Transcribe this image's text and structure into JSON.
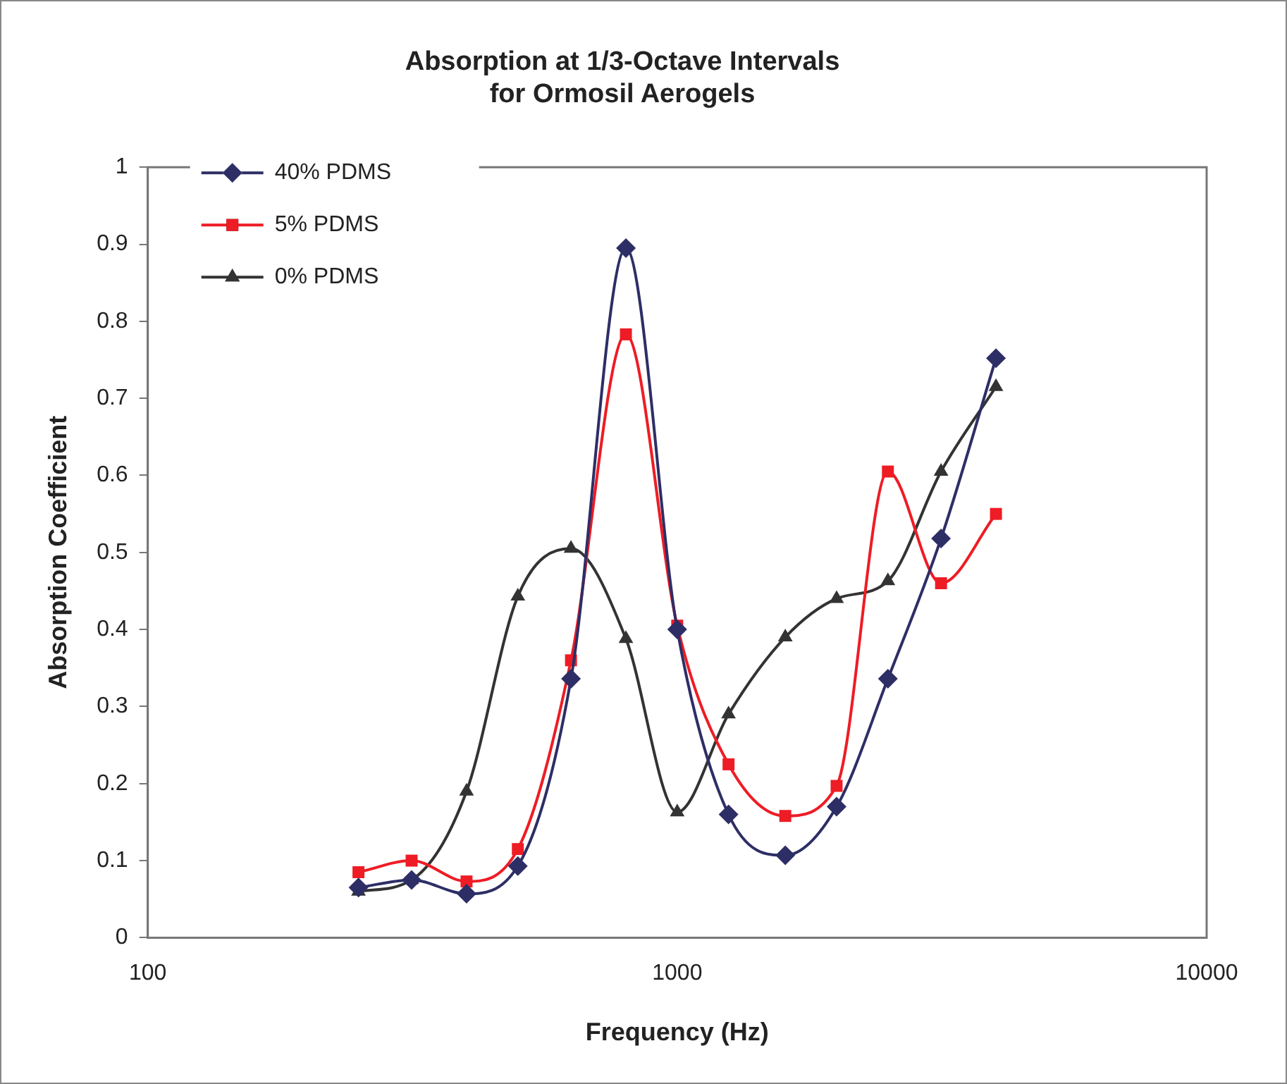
{
  "chart_data": {
    "type": "line",
    "title": "Absorption at 1/3-Octave Intervals\nfor Ormosil Aerogels",
    "xlabel": "Frequency (Hz)",
    "ylabel": "Absorption Coefficient",
    "x": [
      250,
      315,
      400,
      500,
      630,
      800,
      1000,
      1250,
      1600,
      2000,
      2500,
      3150,
      4000
    ],
    "series": [
      {
        "name": "40% PDMS",
        "color": "#2e2e66",
        "marker": "diamond",
        "values": [
          0.065,
          0.075,
          0.057,
          0.093,
          0.336,
          0.895,
          0.4,
          0.16,
          0.107,
          0.17,
          0.336,
          0.518,
          0.752
        ]
      },
      {
        "name": "5% PDMS",
        "color": "#ee1c25",
        "marker": "square",
        "values": [
          0.085,
          0.1,
          0.073,
          0.115,
          0.36,
          0.783,
          0.405,
          0.225,
          0.158,
          0.197,
          0.605,
          0.46,
          0.55
        ]
      },
      {
        "name": "0% PDMS",
        "color": "#333333",
        "marker": "triangle",
        "values": [
          0.06,
          0.075,
          0.19,
          0.443,
          0.505,
          0.388,
          0.163,
          0.29,
          0.39,
          0.44,
          0.463,
          0.605,
          0.715
        ]
      }
    ],
    "log": "x",
    "xlim": [
      100,
      10000
    ],
    "xticks": [
      100,
      1000,
      10000
    ],
    "ylim": [
      0,
      1
    ],
    "yticks": [
      0,
      0.1,
      0.2,
      0.3,
      0.4,
      0.5,
      0.6,
      0.7,
      0.8,
      0.9,
      1
    ],
    "grid": false,
    "legend": "top left"
  }
}
